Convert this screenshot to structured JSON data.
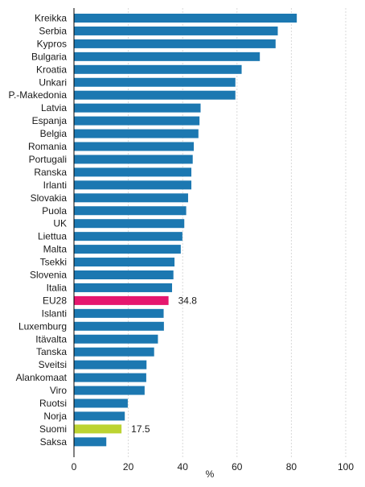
{
  "chart_data": {
    "type": "bar",
    "orientation": "horizontal",
    "categories": [
      "Kreikka",
      "Serbia",
      "Kypros",
      "Bulgaria",
      "Kroatia",
      "Unkari",
      "P.-Makedonia",
      "Latvia",
      "Espanja",
      "Belgia",
      "Romania",
      "Portugali",
      "Ranska",
      "Irlanti",
      "Slovakia",
      "Puola",
      "UK",
      "Liettua",
      "Malta",
      "Tsekki",
      "Slovenia",
      "Italia",
      "EU28",
      "Islanti",
      "Luxemburg",
      "Itävalta",
      "Tanska",
      "Sveitsi",
      "Alankomaat",
      "Viro",
      "Ruotsi",
      "Norja",
      "Suomi",
      "Saksa"
    ],
    "values": [
      82.0,
      75.0,
      74.2,
      68.4,
      61.7,
      59.4,
      59.4,
      46.6,
      46.2,
      45.8,
      44.1,
      43.7,
      43.2,
      43.2,
      42.0,
      41.3,
      40.6,
      39.9,
      39.3,
      37.0,
      36.6,
      36.1,
      34.8,
      33.0,
      33.1,
      30.9,
      29.5,
      26.7,
      26.6,
      26.0,
      19.8,
      18.7,
      17.5,
      11.9
    ],
    "highlight_colors": {
      "EU28": "#e5176e",
      "Suomi": "#bcd331"
    },
    "data_labels": {
      "EU28": "34.8",
      "Suomi": "17.5"
    },
    "default_color": "#1c78b1",
    "xlabel": "%",
    "xlim": [
      0,
      100
    ],
    "xticks": [
      0,
      20,
      40,
      60,
      80,
      100
    ],
    "grid": "vertical"
  }
}
